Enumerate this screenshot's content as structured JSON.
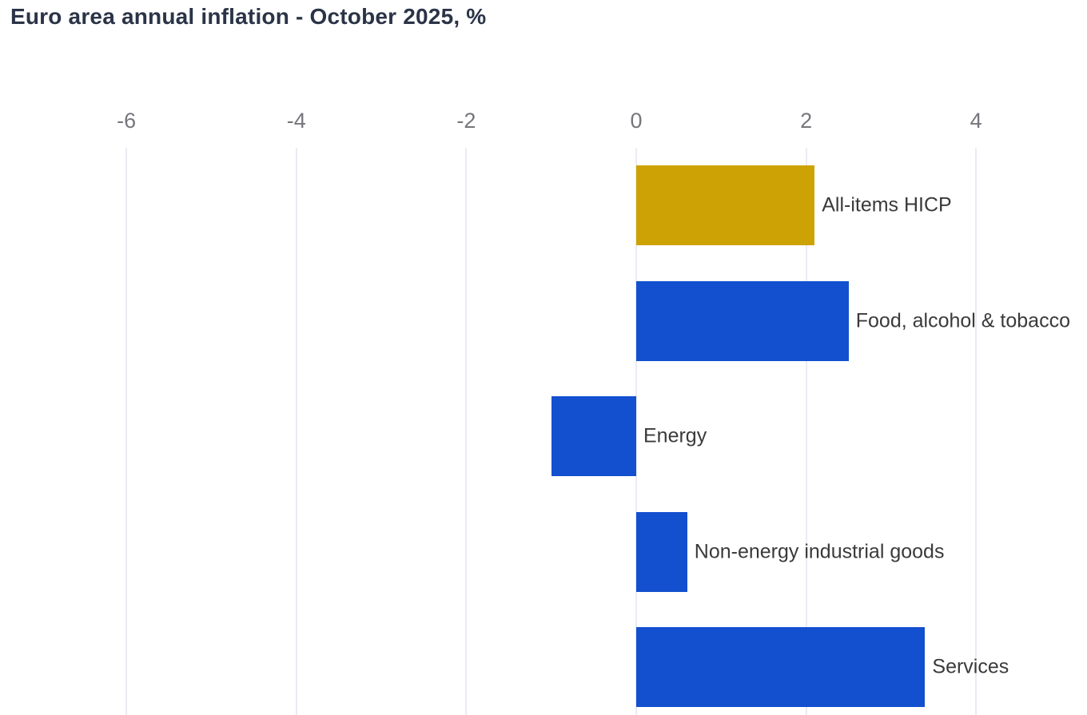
{
  "title": "Euro area annual inflation - October 2025, %",
  "chart_data": {
    "type": "bar",
    "orientation": "horizontal",
    "title": "Euro area annual inflation - October 2025, %",
    "xlabel": "",
    "ylabel": "",
    "unit": "%",
    "x_ticks": [
      -6,
      -4,
      -2,
      0,
      2,
      4
    ],
    "xlim": [
      -7.5,
      5.3
    ],
    "grid": "vertical-only",
    "legend": "none",
    "categories": [
      "All-items HICP",
      "Food, alcohol & tobacco",
      "Energy",
      "Non-energy industrial goods",
      "Services"
    ],
    "values": [
      2.1,
      2.5,
      -1.0,
      0.6,
      3.4
    ],
    "bar_colors": [
      "#CDA204",
      "#1350CF",
      "#1350CF",
      "#1350CF",
      "#1350CF"
    ],
    "colors": {
      "highlight_gold": "#CDA204",
      "primary_blue": "#1350CF",
      "gridline": "#E9ECF4",
      "title_text": "#2B3447",
      "tick_text": "#74767B",
      "label_text": "#3A3A3A",
      "background": "#FFFFFF"
    }
  }
}
